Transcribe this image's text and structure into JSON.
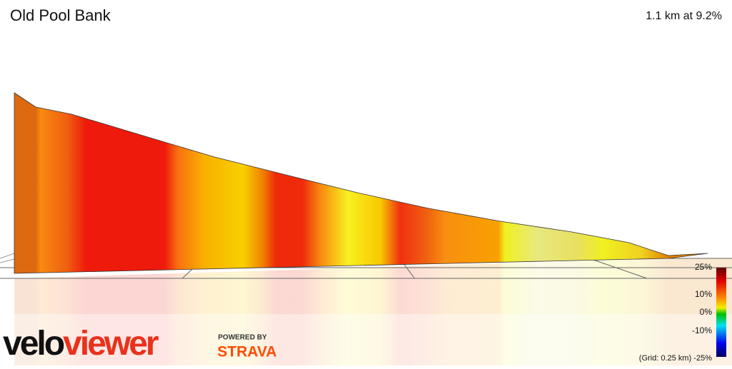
{
  "header": {
    "title": "Old Pool Bank",
    "stats": "1.1 km at 9.2%"
  },
  "legend": {
    "labels": [
      "25%",
      "10%",
      "0%",
      "-10%"
    ],
    "grid_note": "(Grid: 0.25 km) -25%"
  },
  "logo": {
    "velo": "velo",
    "viewer": "viewer",
    "powered": "POWERED BY",
    "strava": "STRAVA"
  }
}
